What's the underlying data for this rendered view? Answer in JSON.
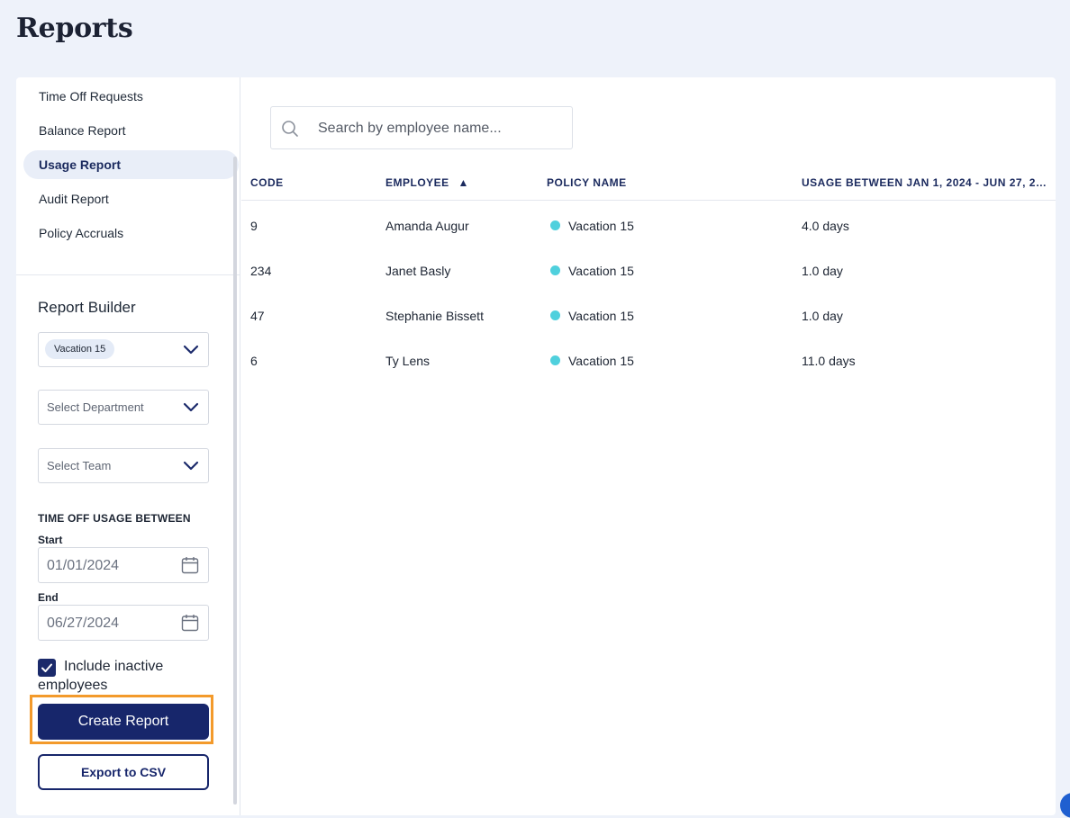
{
  "page": {
    "title": "Reports"
  },
  "nav": {
    "items": [
      {
        "label": "Time Off Requests",
        "active": false
      },
      {
        "label": "Balance Report",
        "active": false
      },
      {
        "label": "Usage Report",
        "active": true
      },
      {
        "label": "Audit Report",
        "active": false
      },
      {
        "label": "Policy Accruals",
        "active": false
      }
    ]
  },
  "builder": {
    "title": "Report Builder",
    "policy_chip": "Vacation 15",
    "department_placeholder": "Select Department",
    "team_placeholder": "Select Team",
    "usage_section_label": "TIME OFF USAGE BETWEEN",
    "start_label": "Start",
    "start_value": "01/01/2024",
    "end_label": "End",
    "end_value": "06/27/2024",
    "include_inactive_label": "Include inactive employees",
    "include_inactive_checked": true,
    "create_button": "Create Report",
    "export_button": "Export to CSV"
  },
  "search": {
    "placeholder": "Search by employee name..."
  },
  "table": {
    "columns": [
      {
        "label": "CODE"
      },
      {
        "label": "EMPLOYEE",
        "sort": "ascending",
        "sort_glyph": "▲"
      },
      {
        "label": "POLICY NAME"
      },
      {
        "label": "USAGE BETWEEN JAN 1, 2024 - JUN 27, 2…"
      }
    ],
    "policy_dot_color": "#4fd0dd",
    "rows": [
      {
        "code": "9",
        "employee": "Amanda Augur",
        "policy": "Vacation 15",
        "usage": "4.0 days"
      },
      {
        "code": "234",
        "employee": "Janet Basly",
        "policy": "Vacation 15",
        "usage": "1.0 day"
      },
      {
        "code": "47",
        "employee": "Stephanie Bissett",
        "policy": "Vacation 15",
        "usage": "1.0 day"
      },
      {
        "code": "6",
        "employee": "Ty Lens",
        "policy": "Vacation 15",
        "usage": "11.0 days"
      }
    ]
  },
  "colors": {
    "accent": "#17266b",
    "highlight": "#f39a2b",
    "background": "#eef2fa",
    "active_nav": "#e9eef8"
  }
}
